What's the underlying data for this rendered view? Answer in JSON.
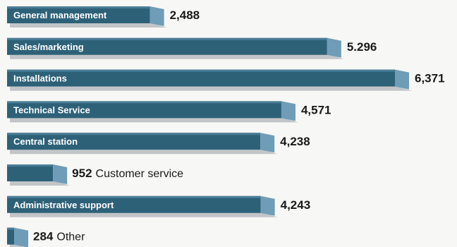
{
  "colors": {
    "bar_face": "#2d6178",
    "bar_end": "#6f9cb6",
    "bar_shadow": "#b9bcbe",
    "background": "#f7f7f5",
    "value_text": "#1a1a1a"
  },
  "chart_data": {
    "type": "bar",
    "orientation": "horizontal",
    "style": "3d-shaded",
    "categories": [
      "General management",
      "Sales/marketing",
      "Installations",
      "Technical Service",
      "Central station",
      "Customer service",
      "Administrative support",
      "Other"
    ],
    "values": [
      2488,
      5296,
      6371,
      4571,
      4238,
      952,
      4243,
      284
    ],
    "value_labels": [
      "2,488",
      "5.296",
      "6,371",
      "4,571",
      "4,238",
      "952",
      "4,243",
      "284"
    ],
    "label_inside": [
      true,
      true,
      true,
      true,
      true,
      false,
      true,
      false
    ],
    "title": "",
    "xlabel": "",
    "ylabel": "",
    "grid": false,
    "legend": "none"
  }
}
